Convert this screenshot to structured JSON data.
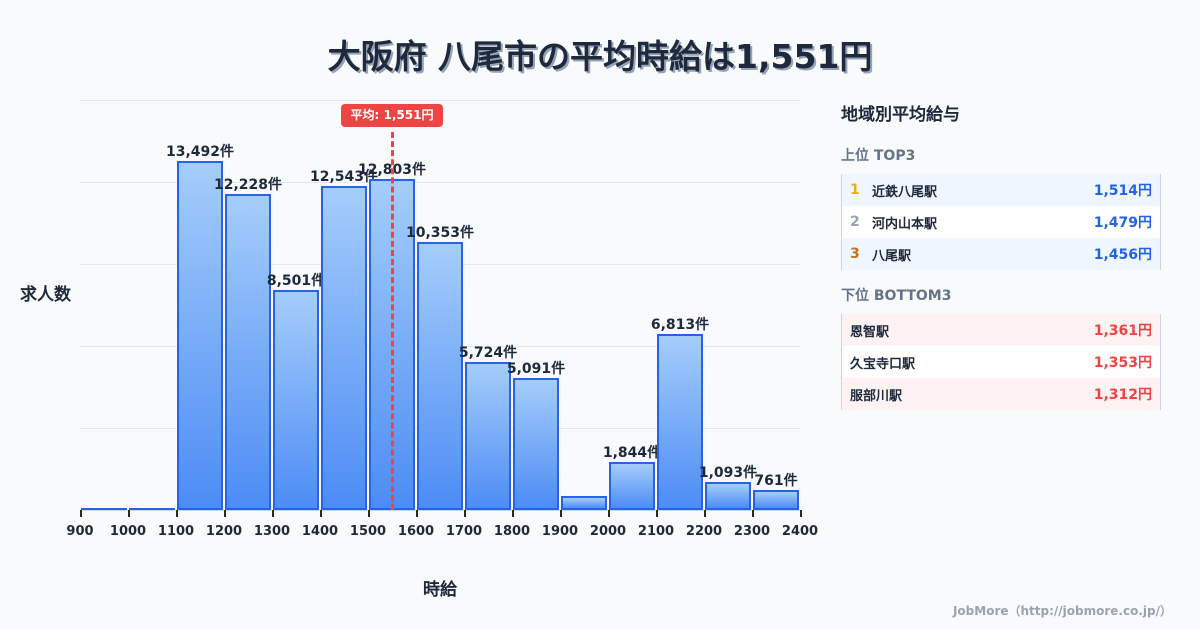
{
  "title": "大阪府 八尾市の平均時給は1,551円",
  "chart_data": {
    "type": "bar",
    "title": "大阪府 八尾市の平均時給は1,551円",
    "xlabel": "時給",
    "ylabel": "求人数",
    "bins": [
      [
        900,
        1000
      ],
      [
        1000,
        1100
      ],
      [
        1100,
        1200
      ],
      [
        1200,
        1300
      ],
      [
        1300,
        1400
      ],
      [
        1400,
        1500
      ],
      [
        1500,
        1600
      ],
      [
        1600,
        1700
      ],
      [
        1700,
        1800
      ],
      [
        1800,
        1900
      ],
      [
        1900,
        2000
      ],
      [
        2000,
        2100
      ],
      [
        2100,
        2200
      ],
      [
        2200,
        2300
      ],
      [
        2300,
        2400
      ]
    ],
    "categories": [
      "900",
      "1000",
      "1100",
      "1200",
      "1300",
      "1400",
      "1500",
      "1600",
      "1700",
      "1800",
      "1900",
      "2000",
      "2100",
      "2200",
      "2300"
    ],
    "values": [
      80,
      80,
      13492,
      12228,
      8501,
      12543,
      12803,
      10353,
      5724,
      5091,
      540,
      1844,
      6813,
      1093,
      761
    ],
    "labels": [
      "",
      "",
      "13,492件",
      "12,228件",
      "8,501件",
      "12,543件",
      "12,803件",
      "10,353件",
      "5,724件",
      "5,091件",
      "",
      "1,844件",
      "6,813件",
      "1,093件",
      "761件"
    ],
    "x_ticks": [
      "900",
      "1000",
      "1100",
      "1200",
      "1300",
      "1400",
      "1500",
      "1600",
      "1700",
      "1800",
      "1900",
      "2000",
      "2100",
      "2200",
      "2300",
      "2400"
    ],
    "xlim": [
      900,
      2400
    ],
    "grid": true,
    "mean": 1551,
    "mean_label": "平均: 1,551円",
    "colors": {
      "bar_fill_top": "#a5cdfb",
      "bar_fill_bottom": "#4d8cf5",
      "bar_border": "#2563eb",
      "mean_line": "#ef4444"
    }
  },
  "panel": {
    "title": "地域別平均給与",
    "top": {
      "heading": "上位 TOP3",
      "rows": [
        {
          "rank": "1",
          "name": "近鉄八尾駅",
          "value": "1,514円",
          "rank_color": "#eab308"
        },
        {
          "rank": "2",
          "name": "河内山本駅",
          "value": "1,479円",
          "rank_color": "#9ca3af"
        },
        {
          "rank": "3",
          "name": "八尾駅",
          "value": "1,456円",
          "rank_color": "#c2741f"
        }
      ]
    },
    "bottom": {
      "heading": "下位 BOTTOM3",
      "rows": [
        {
          "name": "恩智駅",
          "value": "1,361円"
        },
        {
          "name": "久宝寺口駅",
          "value": "1,353円"
        },
        {
          "name": "服部川駅",
          "value": "1,312円"
        }
      ]
    }
  },
  "footer": "JobMore（http://jobmore.co.jp/）"
}
